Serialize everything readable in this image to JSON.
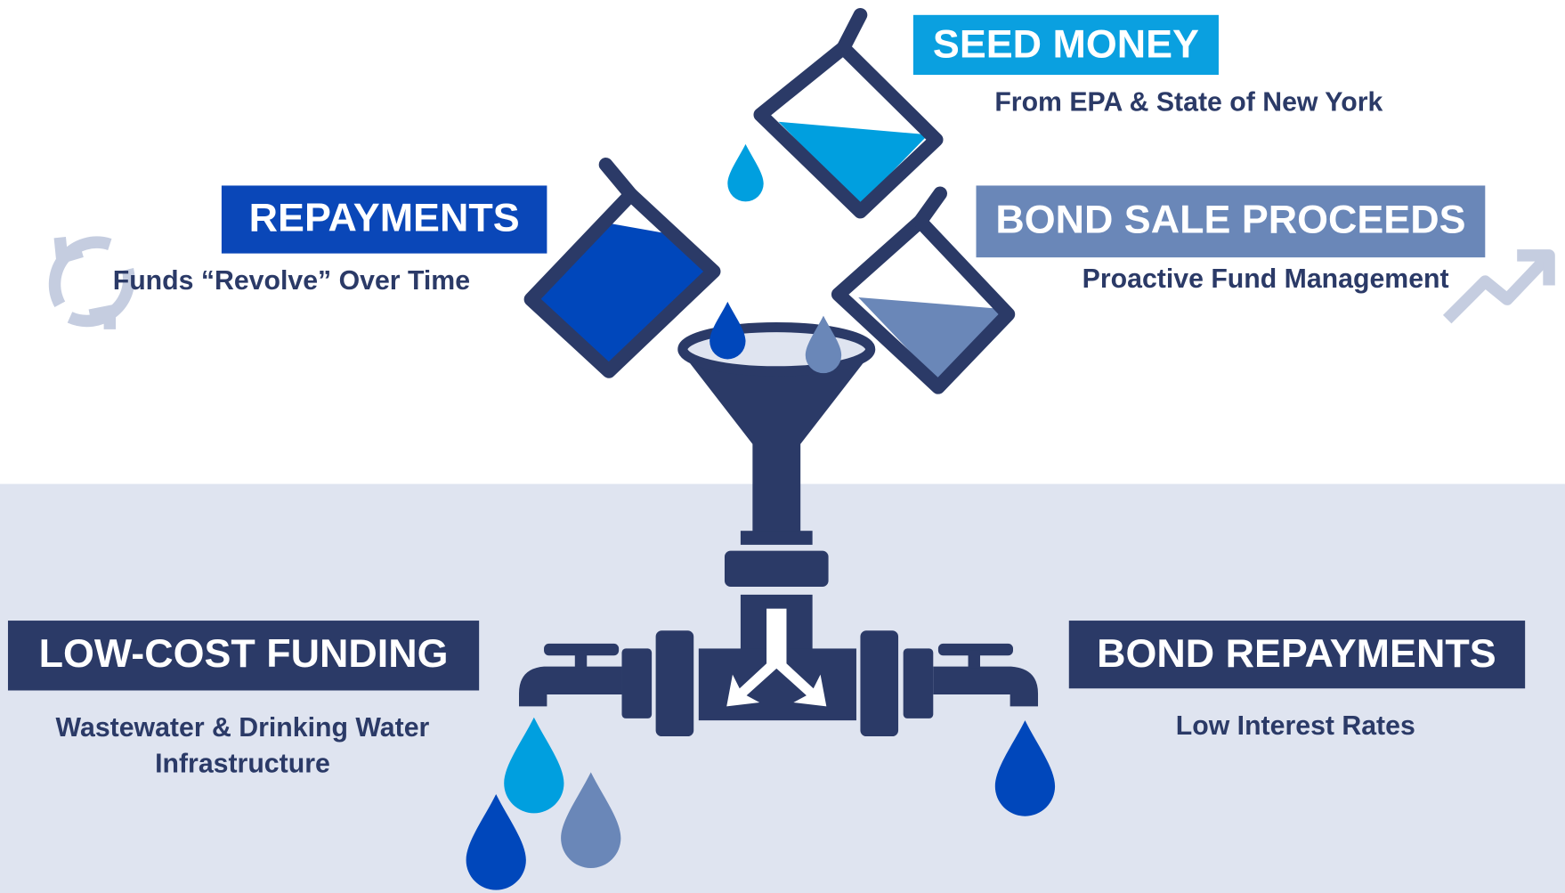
{
  "seed_money": {
    "title": "SEED MONEY",
    "subtitle": "From EPA & State of New York"
  },
  "repayments": {
    "title": "REPAYMENTS",
    "subtitle": "Funds “Revolve” Over Time"
  },
  "bond_sale_proceeds": {
    "title": "BOND SALE PROCEEDS",
    "subtitle": "Proactive Fund Management"
  },
  "low_cost_funding": {
    "title": "LOW-COST FUNDING",
    "subtitle_lines": [
      "Wastewater & Drinking Water",
      "Infrastructure"
    ]
  },
  "bond_repayments": {
    "title": "BOND REPAYMENTS",
    "subtitle": "Low Interest Rates"
  }
}
